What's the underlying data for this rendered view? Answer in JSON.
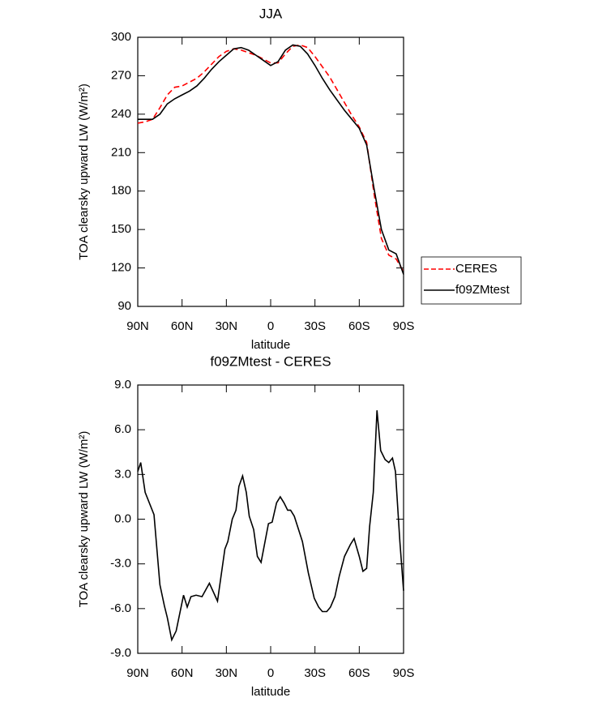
{
  "chart_data": [
    {
      "type": "line",
      "title": "JJA",
      "xlabel": "latitude",
      "ylabel": "TOA clearsky upward LW (W/m²)",
      "x": [
        90,
        85,
        80,
        75,
        70,
        65,
        60,
        55,
        50,
        45,
        40,
        35,
        30,
        25,
        20,
        15,
        10,
        5,
        0,
        -5,
        -10,
        -15,
        -20,
        -25,
        -30,
        -35,
        -40,
        -45,
        -50,
        -55,
        -60,
        -65,
        -70,
        -75,
        -80,
        -85,
        -90
      ],
      "series": [
        {
          "name": "CERES",
          "color": "#ff0000",
          "dashed": true,
          "values": [
            233,
            234,
            236,
            245,
            255,
            261,
            262,
            265,
            268,
            273,
            279,
            285,
            289,
            291,
            290,
            288,
            286,
            283,
            280,
            280,
            287,
            293,
            294,
            292,
            285,
            277,
            269,
            259,
            249,
            239,
            230,
            218,
            178,
            143,
            130,
            127,
            117
          ]
        },
        {
          "name": "f09ZMtest",
          "color": "#000000",
          "dashed": false,
          "values": [
            236,
            236,
            236,
            240,
            248,
            252,
            255,
            258,
            262,
            268,
            275,
            281,
            286,
            291,
            292,
            290,
            286,
            282,
            278,
            281,
            290,
            294,
            293,
            287,
            278,
            268,
            259,
            251,
            243,
            236,
            229,
            216,
            182,
            150,
            134,
            131,
            115
          ]
        }
      ],
      "xlim": [
        90,
        -90
      ],
      "xticks": [
        {
          "value": 90,
          "label": "90N"
        },
        {
          "value": 60,
          "label": "60N"
        },
        {
          "value": 30,
          "label": "30N"
        },
        0,
        {
          "value": -30,
          "label": "30S"
        },
        {
          "value": -60,
          "label": "60S"
        },
        {
          "value": -90,
          "label": "90S"
        }
      ],
      "ylim": [
        90,
        300
      ],
      "yticks": [
        90,
        120,
        150,
        180,
        210,
        240,
        270,
        300
      ],
      "legend": "right"
    },
    {
      "type": "line",
      "title": "f09ZMtest - CERES",
      "xlabel": "latitude",
      "ylabel": "TOA clearsky upward LW (W/m²)",
      "x": [
        90,
        88,
        85,
        79,
        75,
        72,
        70,
        67,
        64,
        59,
        56.5,
        54,
        50.5,
        46.5,
        41.5,
        36,
        31,
        29,
        26,
        23.5,
        21.5,
        19,
        16.5,
        14.5,
        11.5,
        9,
        6.5,
        1.5,
        -1,
        -4,
        -6.5,
        -9,
        -11.5,
        -13.5,
        -16,
        -21.5,
        -25.5,
        -29.5,
        -32.5,
        -35,
        -38,
        -40.5,
        -43.5,
        -46.5,
        -50,
        -54,
        -56.5,
        -60,
        -62.5,
        -65,
        -67,
        -69.5,
        -72,
        -74.5,
        -77.5,
        -80,
        -82.5,
        -84.5,
        -87.5,
        -90
      ],
      "series": [
        {
          "color": "#000000",
          "dashed": false,
          "values": [
            3.2,
            3.8,
            1.8,
            0.3,
            -4.4,
            -5.8,
            -6.6,
            -8.1,
            -7.5,
            -5.1,
            -5.9,
            -5.2,
            -5.1,
            -5.2,
            -4.3,
            -5.5,
            -2.0,
            -1.5,
            0.0,
            0.6,
            2.2,
            2.9,
            1.8,
            0.2,
            -0.7,
            -2.5,
            -2.9,
            -0.3,
            -0.2,
            1.1,
            1.5,
            1.1,
            0.6,
            0.6,
            0.2,
            -1.5,
            -3.6,
            -5.3,
            -5.9,
            -6.2,
            -6.2,
            -5.9,
            -5.2,
            -3.8,
            -2.5,
            -1.7,
            -1.3,
            -2.5,
            -3.5,
            -3.3,
            -0.5,
            1.8,
            7.3,
            4.6,
            4.0,
            3.8,
            4.1,
            3.2,
            -1.5,
            -4.8
          ]
        }
      ],
      "xlim": [
        90,
        -90
      ],
      "xticks": [
        {
          "value": 90,
          "label": "90N"
        },
        {
          "value": 60,
          "label": "60N"
        },
        {
          "value": 30,
          "label": "30N"
        },
        0,
        {
          "value": -30,
          "label": "30S"
        },
        {
          "value": -60,
          "label": "60S"
        },
        {
          "value": -90,
          "label": "90S"
        }
      ],
      "ylim": [
        -9,
        9
      ],
      "yticks": [
        {
          "value": -9,
          "label": "-9.0"
        },
        {
          "value": -6,
          "label": "-6.0"
        },
        {
          "value": -3,
          "label": "-3.0"
        },
        {
          "value": 0,
          "label": "0.0"
        },
        {
          "value": 3,
          "label": "3.0"
        },
        {
          "value": 6,
          "label": "6.0"
        },
        {
          "value": 9,
          "label": "9.0"
        }
      ]
    }
  ]
}
